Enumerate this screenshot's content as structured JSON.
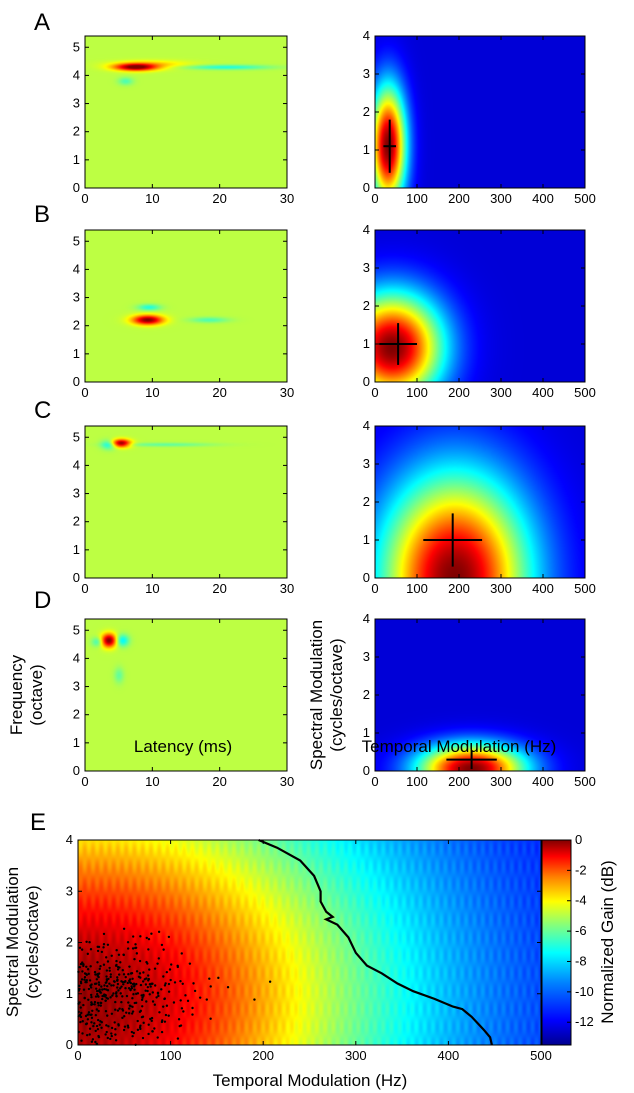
{
  "colors": {
    "strf_background": "#8ff06a",
    "mtf_background": "#0a2ea6",
    "peak": "#8a0000",
    "marker": "#000000"
  },
  "colormap": [
    "#00008f",
    "#0000ff",
    "#0080ff",
    "#00ffff",
    "#80ff80",
    "#ffff00",
    "#ff8000",
    "#ff0000",
    "#800000"
  ],
  "chart_data": [
    {
      "panel": "A",
      "type": "heatmap",
      "kind": "strf",
      "xlim": [
        0,
        30
      ],
      "ylim": [
        0,
        5.4
      ],
      "xticks": [
        0,
        10,
        20,
        30
      ],
      "yticks": [
        0,
        1,
        2,
        3,
        4,
        5
      ],
      "xlabel": "",
      "ylabel": "",
      "features": [
        {
          "x": 7.5,
          "y": 4.3,
          "sx": 2.2,
          "sy": 0.09,
          "amp": 1.0
        },
        {
          "x": 10,
          "y": 4.4,
          "sx": 4,
          "sy": 0.1,
          "amp": 0.25
        },
        {
          "x": 21,
          "y": 4.3,
          "sx": 4.5,
          "sy": 0.06,
          "amp": -0.35
        },
        {
          "x": 6,
          "y": 3.8,
          "sx": 0.8,
          "sy": 0.1,
          "amp": -0.25
        }
      ]
    },
    {
      "panel": "A",
      "type": "heatmap",
      "kind": "mtf",
      "xlim": [
        0,
        500
      ],
      "ylim": [
        0,
        4
      ],
      "xticks": [
        0,
        100,
        200,
        300,
        400,
        500
      ],
      "yticks": [
        0,
        1,
        2,
        3,
        4
      ],
      "xlabel": "",
      "ylabel": "",
      "peak": {
        "x": 30,
        "y": 1.1,
        "sx": 30,
        "sy": 1.1,
        "tail": 0.0
      },
      "cross": {
        "x": 35,
        "y": 1.1,
        "dx": 15,
        "dy": 0.7
      }
    },
    {
      "panel": "B",
      "type": "heatmap",
      "kind": "strf",
      "xlim": [
        0,
        30
      ],
      "ylim": [
        0,
        5.4
      ],
      "xticks": [
        0,
        10,
        20,
        30
      ],
      "yticks": [
        0,
        1,
        2,
        3,
        4,
        5
      ],
      "xlabel": "",
      "ylabel": "",
      "features": [
        {
          "x": 9.3,
          "y": 2.2,
          "sx": 1.6,
          "sy": 0.12,
          "amp": 1.0
        },
        {
          "x": 9.5,
          "y": 2.65,
          "sx": 1.2,
          "sy": 0.08,
          "amp": -0.35
        },
        {
          "x": 18.5,
          "y": 2.2,
          "sx": 2.0,
          "sy": 0.07,
          "amp": -0.25
        }
      ]
    },
    {
      "panel": "B",
      "type": "heatmap",
      "kind": "mtf",
      "xlim": [
        0,
        500
      ],
      "ylim": [
        0,
        4
      ],
      "xticks": [
        0,
        100,
        200,
        300,
        400,
        500
      ],
      "yticks": [
        0,
        1,
        2,
        3,
        4
      ],
      "xlabel": "",
      "ylabel": "",
      "peak": {
        "x": 40,
        "y": 0.9,
        "sx": 85,
        "sy": 1.0,
        "tail": 0.0
      },
      "cross": {
        "x": 55,
        "y": 1.0,
        "dx": 45,
        "dy": 0.55
      }
    },
    {
      "panel": "C",
      "type": "heatmap",
      "kind": "strf",
      "xlim": [
        0,
        30
      ],
      "ylim": [
        0,
        5.4
      ],
      "xticks": [
        0,
        10,
        20,
        30
      ],
      "yticks": [
        0,
        1,
        2,
        3,
        4,
        5
      ],
      "xlabel": "",
      "ylabel": "",
      "features": [
        {
          "x": 5.3,
          "y": 4.8,
          "sx": 1.0,
          "sy": 0.1,
          "amp": 1.0
        },
        {
          "x": 3.5,
          "y": 4.75,
          "sx": 0.8,
          "sy": 0.12,
          "amp": -0.4
        },
        {
          "x": 12,
          "y": 4.75,
          "sx": 5,
          "sy": 0.05,
          "amp": -0.2
        }
      ]
    },
    {
      "panel": "C",
      "type": "heatmap",
      "kind": "mtf",
      "xlim": [
        0,
        500
      ],
      "ylim": [
        0,
        4
      ],
      "xticks": [
        0,
        100,
        200,
        300,
        400,
        500
      ],
      "yticks": [
        0,
        1,
        2,
        3,
        4
      ],
      "xlabel": "",
      "ylabel": "",
      "peak": {
        "x": 190,
        "y": 0.0,
        "sx": 125,
        "sy": 1.9,
        "tail": 0.0
      },
      "cross": {
        "x": 185,
        "y": 1.0,
        "dx": 70,
        "dy": 0.7
      }
    },
    {
      "panel": "D",
      "type": "heatmap",
      "kind": "strf",
      "xlim": [
        0,
        30
      ],
      "ylim": [
        0,
        5.4
      ],
      "xticks": [
        0,
        10,
        20,
        30
      ],
      "yticks": [
        0,
        1,
        2,
        3,
        4,
        5
      ],
      "xlabel": "Latency (ms)",
      "ylabel": "Frequency\n(octave)",
      "features": [
        {
          "x": 3.5,
          "y": 4.65,
          "sx": 0.8,
          "sy": 0.17,
          "amp": 1.0
        },
        {
          "x": 5.5,
          "y": 4.65,
          "sx": 0.7,
          "sy": 0.15,
          "amp": -0.45
        },
        {
          "x": 1.8,
          "y": 4.6,
          "sx": 0.6,
          "sy": 0.12,
          "amp": -0.3
        },
        {
          "x": 5,
          "y": 3.4,
          "sx": 0.5,
          "sy": 0.2,
          "amp": -0.2
        }
      ]
    },
    {
      "panel": "D",
      "type": "heatmap",
      "kind": "mtf",
      "xlim": [
        0,
        500
      ],
      "ylim": [
        0,
        4
      ],
      "xticks": [
        0,
        100,
        200,
        300,
        400,
        500
      ],
      "yticks": [
        0,
        1,
        2,
        3,
        4
      ],
      "xlabel": "Temporal Modulation (Hz)",
      "ylabel": "Spectral Modulation\n(cycles/octave)",
      "peak": {
        "x": 230,
        "y": 0.05,
        "sx": 90,
        "sy": 0.45,
        "tail": 0.0
      },
      "cross": {
        "x": 230,
        "y": 0.3,
        "dx": 60,
        "dy": 0.25
      }
    },
    {
      "panel": "E",
      "type": "heatmap",
      "kind": "population",
      "xlim": [
        0,
        500
      ],
      "ylim": [
        0,
        4
      ],
      "xticks": [
        0,
        100,
        200,
        300,
        400,
        500
      ],
      "yticks": [
        0,
        1,
        2,
        3,
        4
      ],
      "xlabel": "Temporal Modulation (Hz)",
      "ylabel": "Spectral Modulation\n(cycles/octave)",
      "colorbar": {
        "label": "Normalized Gain (dB)",
        "ticks": [
          0,
          -2,
          -4,
          -6,
          -8,
          -10,
          -12
        ],
        "range": [
          -13.5,
          0
        ]
      },
      "contour": [
        [
          195,
          4.0
        ],
        [
          215,
          3.85
        ],
        [
          240,
          3.6
        ],
        [
          255,
          3.3
        ],
        [
          262,
          3.0
        ],
        [
          262,
          2.8
        ],
        [
          268,
          2.6
        ],
        [
          275,
          2.5
        ],
        [
          268,
          2.45
        ],
        [
          280,
          2.35
        ],
        [
          292,
          2.1
        ],
        [
          300,
          1.8
        ],
        [
          312,
          1.55
        ],
        [
          328,
          1.4
        ],
        [
          345,
          1.2
        ],
        [
          362,
          1.05
        ],
        [
          385,
          0.9
        ],
        [
          405,
          0.75
        ],
        [
          415,
          0.7
        ],
        [
          425,
          0.55
        ],
        [
          438,
          0.3
        ],
        [
          445,
          0.15
        ],
        [
          447,
          0.0
        ]
      ],
      "scatter_summary": {
        "n": 420,
        "center": [
          40,
          1.0
        ],
        "spread": [
          30,
          0.5
        ]
      }
    }
  ],
  "panel_labels": {
    "A": "A",
    "B": "B",
    "C": "C",
    "D": "D",
    "E": "E"
  }
}
